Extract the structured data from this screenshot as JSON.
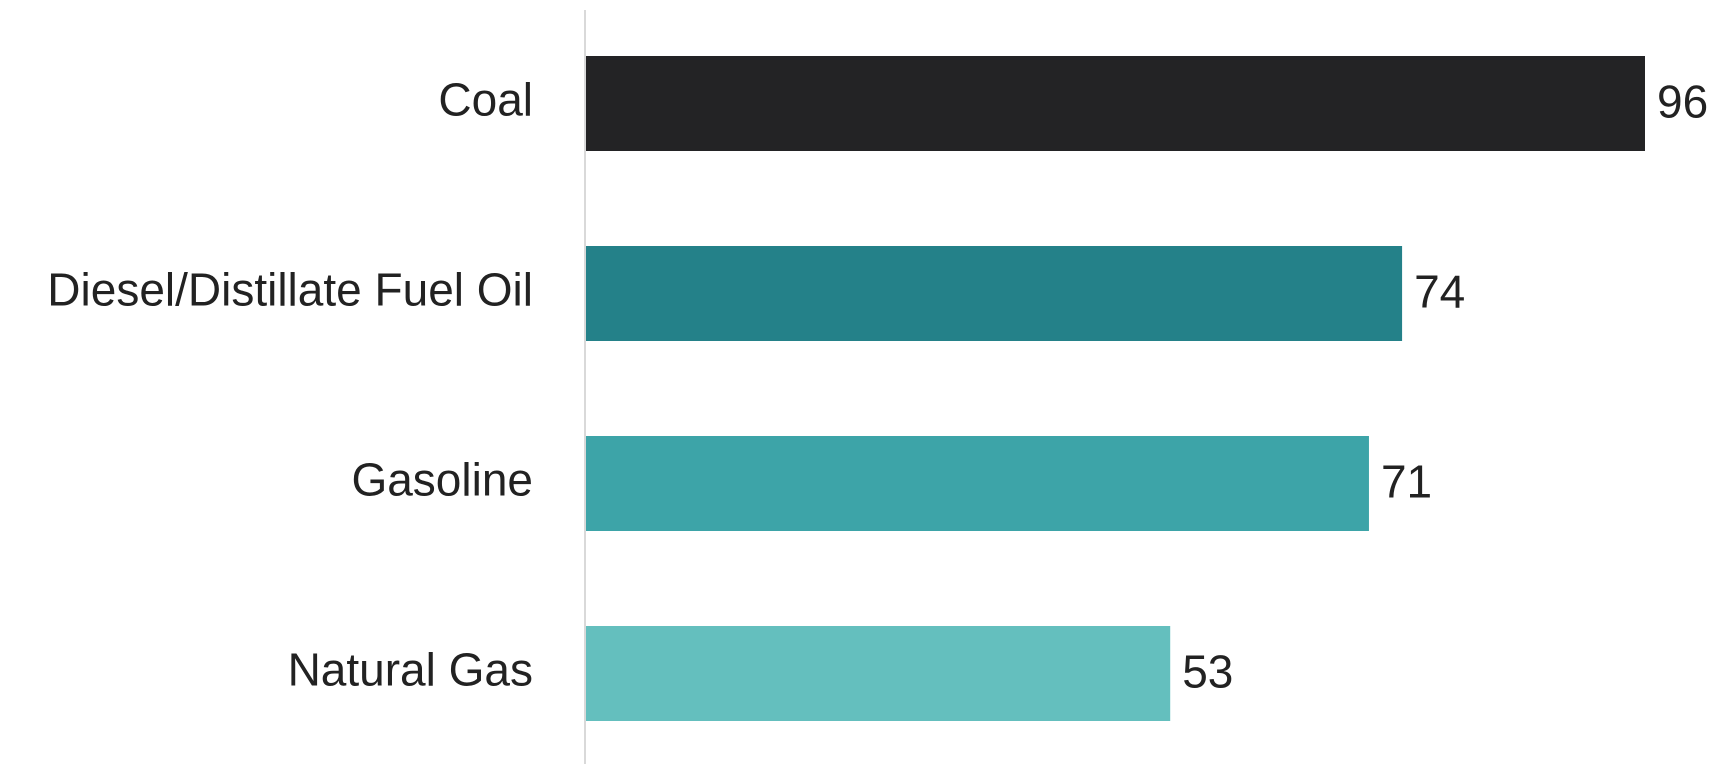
{
  "chart_data": {
    "type": "bar",
    "orientation": "horizontal",
    "title": "",
    "xlabel": "",
    "ylabel": "",
    "categories": [
      "Coal",
      "Diesel/Distillate Fuel Oil",
      "Gasoline",
      "Natural Gas"
    ],
    "values": [
      96,
      74,
      71,
      53
    ],
    "colors": [
      "#232325",
      "#248189",
      "#3da4a8",
      "#64bfbe"
    ],
    "axis_color": "#d9d9d9",
    "xlim": [
      0,
      96
    ],
    "grid": false,
    "legend": "none",
    "data_labels": true
  }
}
